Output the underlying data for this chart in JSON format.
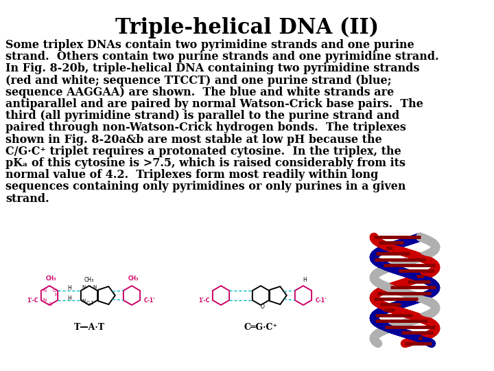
{
  "title": "Triple-helical DNA (II)",
  "title_fontsize": 22,
  "title_font": "serif",
  "background_color": "#ffffff",
  "text_color": "#000000",
  "body_text": "Some triplex DNAs contain two pyrimidine strands and one purine\nstrand.  Others contain two purine strands and one pyrimidine strand.\nIn Fig. 8-20b, triple-helical DNA containing two pyrimidine strands\n(red and white; sequence TTCCT) and one purine strand (blue;\nsequence AAGGAA) are shown.  The blue and white strands are\nantiparallel and are paired by normal Watson-Crick base pairs.  The\nthird (all pyrimidine strand) is parallel to the purine strand and\npaired through non-Watson-Crick hydrogen bonds.  The triplexes\nshown in Fig. 8-20a&b are most stable at low pH because the\nC/G·C⁺ triplet requires a protonated cytosine.  In the triplex, the\npKₐ of this cytosine is >7.5, which is raised considerably from its\nnormal value of 4.2.  Triplexes form most readily within long\nsequences containing only pyrimidines or only purines in a given\nstrand.",
  "body_fontsize": 11.5,
  "label_tat": "T—A·T",
  "label_cgc": "C═G·C⁺",
  "fig_width": 7.2,
  "fig_height": 5.4,
  "dpi": 100
}
